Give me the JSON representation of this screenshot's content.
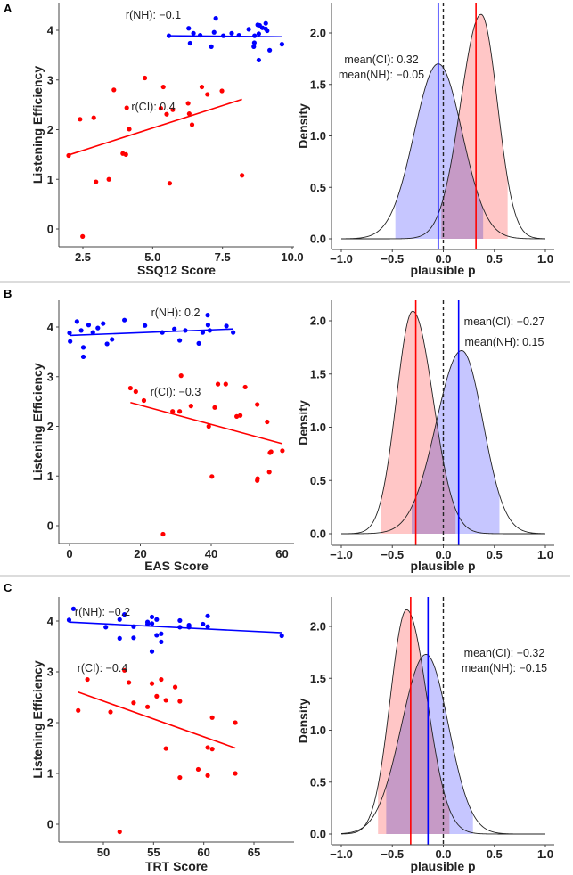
{
  "colors": {
    "ci": "#ff0000",
    "nh": "#0000ff",
    "ci_fill": "#ffb3b3",
    "nh_fill": "#b3b3ff"
  },
  "chart_data": [
    {
      "panel": "A",
      "type": "scatter",
      "xlabel": "SSQ12 Score",
      "ylabel": "Listening Efficiency",
      "xticks": [
        "2.5",
        "5.0",
        "7.5",
        "10.0"
      ],
      "xtick_values": [
        2.5,
        5,
        7.5,
        10
      ],
      "yticks": [
        "0",
        "1",
        "2",
        "3",
        "4"
      ],
      "ytick_values": [
        0,
        1,
        2,
        3,
        4
      ],
      "annotations": {
        "nh": "r(NH):  −0.1",
        "ci": "r(CI):  0.4"
      },
      "series": [
        {
          "name": "NH",
          "color": "nh",
          "fit": [
            [
              5.58,
              3.89
            ],
            [
              9.63,
              3.87
            ]
          ],
          "points": [
            [
              5.58,
              3.89
            ],
            [
              6.29,
              4.04
            ],
            [
              6.34,
              3.74
            ],
            [
              6.46,
              3.94
            ],
            [
              6.7,
              3.9
            ],
            [
              7.1,
              3.67
            ],
            [
              7.2,
              3.96
            ],
            [
              7.26,
              4.24
            ],
            [
              7.53,
              3.89
            ],
            [
              7.83,
              3.94
            ],
            [
              8.09,
              3.9
            ],
            [
              8.44,
              4.02
            ],
            [
              8.62,
              3.67
            ],
            [
              8.64,
              3.75
            ],
            [
              8.65,
              3.89
            ],
            [
              8.76,
              4.11
            ],
            [
              8.8,
              3.93
            ],
            [
              8.8,
              3.4
            ],
            [
              8.83,
              4.1
            ],
            [
              8.93,
              4.05
            ],
            [
              9.05,
              4.14
            ],
            [
              9.05,
              4.03
            ],
            [
              9.1,
              3.99
            ],
            [
              9.19,
              3.6
            ],
            [
              9.63,
              3.72
            ]
          ]
        },
        {
          "name": "CI",
          "color": "ci",
          "fit": [
            [
              1.99,
              1.49
            ],
            [
              8.2,
              2.61
            ]
          ],
          "points": [
            [
              1.99,
              1.48
            ],
            [
              2.4,
              2.21
            ],
            [
              2.49,
              -0.15
            ],
            [
              2.89,
              2.24
            ],
            [
              2.97,
              0.95
            ],
            [
              3.43,
              1.0
            ],
            [
              3.61,
              2.8
            ],
            [
              3.93,
              1.52
            ],
            [
              4.04,
              1.5
            ],
            [
              4.07,
              2.44
            ],
            [
              4.16,
              2.01
            ],
            [
              4.72,
              3.04
            ],
            [
              5.29,
              2.43
            ],
            [
              5.38,
              2.86
            ],
            [
              5.5,
              2.31
            ],
            [
              5.61,
              0.92
            ],
            [
              5.72,
              2.4
            ],
            [
              6.27,
              2.53
            ],
            [
              6.31,
              2.32
            ],
            [
              6.41,
              2.1
            ],
            [
              6.76,
              2.86
            ],
            [
              6.96,
              2.71
            ],
            [
              7.48,
              2.78
            ],
            [
              8.2,
              1.08
            ]
          ]
        }
      ]
    },
    {
      "panel": "A",
      "type": "area",
      "xlabel": "plausible p",
      "ylabel": "Density",
      "xticks": [
        "−1.0",
        "−0.5",
        "0.0",
        "0.5",
        "1.0"
      ],
      "xtick_values": [
        -1,
        -0.5,
        0,
        0.5,
        1
      ],
      "yticks": [
        "0.0",
        "0.5",
        "1.0",
        "1.5",
        "2.0"
      ],
      "ytick_values": [
        0,
        0.5,
        1,
        1.5,
        2
      ],
      "annotations": {
        "ci": "mean(CI):  0.32",
        "nh": "mean(NH):  −0.05"
      },
      "series": [
        {
          "name": "NH",
          "color": "nh",
          "mode": -0.05,
          "peak": 1.7,
          "sd_left": 0.235,
          "sd_right": 0.235,
          "mean": -0.05,
          "interval": [
            -0.47,
            0.39
          ]
        },
        {
          "name": "CI",
          "color": "ci",
          "mode": 0.37,
          "peak": 2.18,
          "sd_left": 0.2,
          "sd_right": 0.16,
          "mean": 0.32,
          "interval": [
            -0.02,
            0.63
          ]
        }
      ]
    },
    {
      "panel": "B",
      "type": "scatter",
      "xlabel": "EAS Score",
      "ylabel": "Listening Efficiency",
      "xticks": [
        "0",
        "20",
        "40",
        "60"
      ],
      "xtick_values": [
        0,
        20,
        40,
        60
      ],
      "yticks": [
        "0",
        "1",
        "2",
        "3",
        "4"
      ],
      "ytick_values": [
        0,
        1,
        2,
        3,
        4
      ],
      "annotations": {
        "nh": "r(NH):  0.2",
        "ci": "r(CI):  −0.3"
      },
      "series": [
        {
          "name": "NH",
          "color": "nh",
          "fit": [
            [
              0,
              3.83
            ],
            [
              46.2,
              3.96
            ]
          ],
          "points": [
            [
              0,
              3.88
            ],
            [
              0.17,
              3.71
            ],
            [
              2.1,
              4.11
            ],
            [
              3.3,
              3.93
            ],
            [
              3.9,
              3.59
            ],
            [
              3.9,
              3.4
            ],
            [
              5.4,
              4.04
            ],
            [
              6.6,
              3.89
            ],
            [
              8,
              3.98
            ],
            [
              9.5,
              4.07
            ],
            [
              10.6,
              3.66
            ],
            [
              12,
              3.75
            ],
            [
              15.5,
              4.14
            ],
            [
              21.3,
              4.03
            ],
            [
              26.2,
              3.89
            ],
            [
              29.6,
              3.96
            ],
            [
              31.1,
              3.73
            ],
            [
              32.7,
              3.93
            ],
            [
              36.5,
              3.67
            ],
            [
              37.6,
              3.89
            ],
            [
              39,
              4.24
            ],
            [
              39.1,
              4.04
            ],
            [
              39.6,
              3.93
            ],
            [
              44.3,
              4.02
            ],
            [
              46.2,
              3.89
            ]
          ]
        },
        {
          "name": "CI",
          "color": "ci",
          "fit": [
            [
              17.2,
              2.48
            ],
            [
              60.1,
              1.65
            ]
          ],
          "points": [
            [
              17.2,
              2.77
            ],
            [
              18.7,
              2.7
            ],
            [
              21,
              2.52
            ],
            [
              26.4,
              -0.17
            ],
            [
              29.1,
              2.3
            ],
            [
              31.1,
              2.3
            ],
            [
              31.5,
              3.02
            ],
            [
              34.3,
              2.41
            ],
            [
              39.3,
              2.0
            ],
            [
              40.2,
              0.99
            ],
            [
              41,
              2.38
            ],
            [
              41.9,
              2.85
            ],
            [
              44.1,
              2.85
            ],
            [
              47.2,
              2.2
            ],
            [
              48.2,
              2.22
            ],
            [
              49.6,
              2.79
            ],
            [
              53,
              2.44
            ],
            [
              53,
              0.91
            ],
            [
              53.1,
              0.95
            ],
            [
              55.8,
              2.09
            ],
            [
              56.4,
              1.08
            ],
            [
              56.6,
              1.47
            ],
            [
              56.9,
              1.49
            ],
            [
              60.1,
              1.51
            ]
          ]
        }
      ]
    },
    {
      "panel": "B",
      "type": "area",
      "xlabel": "plausible p",
      "ylabel": "Density",
      "xticks": [
        "−1.0",
        "−0.5",
        "0.0",
        "0.5",
        "1.0"
      ],
      "xtick_values": [
        -1,
        -0.5,
        0,
        0.5,
        1
      ],
      "yticks": [
        "0.0",
        "0.5",
        "1.0",
        "1.5",
        "2.0"
      ],
      "ytick_values": [
        0,
        0.5,
        1,
        1.5,
        2
      ],
      "annotations": {
        "ci": "mean(CI):  −0.27",
        "nh": "mean(NH):  0.15"
      },
      "series": [
        {
          "name": "CI",
          "color": "ci",
          "mode": -0.3,
          "peak": 2.09,
          "sd_left": 0.16,
          "sd_right": 0.2,
          "mean": -0.27,
          "interval": [
            -0.61,
            0.12
          ]
        },
        {
          "name": "NH",
          "color": "nh",
          "mode": 0.18,
          "peak": 1.72,
          "sd_left": 0.25,
          "sd_right": 0.21,
          "mean": 0.15,
          "interval": [
            -0.31,
            0.55
          ]
        }
      ]
    },
    {
      "panel": "C",
      "type": "scatter",
      "xlabel": "TRT Score",
      "ylabel": "Listening Efficiency",
      "xticks": [
        "50",
        "55",
        "60",
        "65"
      ],
      "xtick_values": [
        50,
        55,
        60,
        65
      ],
      "yticks": [
        "0",
        "1",
        "2",
        "3",
        "4"
      ],
      "ytick_values": [
        0,
        1,
        2,
        3,
        4
      ],
      "annotations": {
        "nh": "r(NH):  −0.2",
        "ci": "r(CI):  −0.4"
      },
      "series": [
        {
          "name": "NH",
          "color": "nh",
          "fit": [
            [
              46.58,
              3.98
            ],
            [
              67.77,
              3.77
            ]
          ],
          "points": [
            [
              46.58,
              4.02
            ],
            [
              47.02,
              4.24
            ],
            [
              50.24,
              3.88
            ],
            [
              51.62,
              4.03
            ],
            [
              51.62,
              3.66
            ],
            [
              52.1,
              4.13
            ],
            [
              53.01,
              3.89
            ],
            [
              53.01,
              3.67
            ],
            [
              54.4,
              3.98
            ],
            [
              54.4,
              3.94
            ],
            [
              54.84,
              4.08
            ],
            [
              54.84,
              3.95
            ],
            [
              54.84,
              3.4
            ],
            [
              55.31,
              4.03
            ],
            [
              55.31,
              3.72
            ],
            [
              55.76,
              3.75
            ],
            [
              55.76,
              3.59
            ],
            [
              57.62,
              4.01
            ],
            [
              57.62,
              3.88
            ],
            [
              58.53,
              3.92
            ],
            [
              58.53,
              3.88
            ],
            [
              59.92,
              3.94
            ],
            [
              60.39,
              4.1
            ],
            [
              60.39,
              3.89
            ],
            [
              67.77,
              3.71
            ]
          ]
        },
        {
          "name": "CI",
          "color": "ci",
          "fit": [
            [
              47.49,
              2.6
            ],
            [
              63.14,
              1.5
            ]
          ],
          "points": [
            [
              47.49,
              2.24
            ],
            [
              48.41,
              2.85
            ],
            [
              50.71,
              2.21
            ],
            [
              51.62,
              -0.15
            ],
            [
              52.1,
              3.03
            ],
            [
              52.54,
              2.79
            ],
            [
              53.01,
              2.39
            ],
            [
              54.4,
              2.31
            ],
            [
              54.84,
              2.77
            ],
            [
              55.31,
              2.52
            ],
            [
              55.76,
              2.85
            ],
            [
              56.23,
              2.44
            ],
            [
              56.23,
              1.49
            ],
            [
              57.15,
              2.7
            ],
            [
              57.62,
              2.42
            ],
            [
              57.62,
              0.92
            ],
            [
              59.45,
              1.08
            ],
            [
              60.39,
              1.51
            ],
            [
              60.39,
              0.96
            ],
            [
              60.84,
              2.1
            ],
            [
              60.84,
              1.48
            ],
            [
              63.14,
              2.0
            ],
            [
              63.14,
              1.0
            ]
          ]
        }
      ]
    },
    {
      "panel": "C",
      "type": "area",
      "xlabel": "plausible p",
      "ylabel": "Density",
      "xticks": [
        "−1.0",
        "−0.5",
        "0.0",
        "0.5",
        "1.0"
      ],
      "xtick_values": [
        -1,
        -0.5,
        0,
        0.5,
        1
      ],
      "yticks": [
        "0.0",
        "0.5",
        "1.0",
        "1.5",
        "2.0"
      ],
      "ytick_values": [
        0,
        0.5,
        1,
        1.5,
        2
      ],
      "annotations": {
        "ci": "mean(CI):  −0.32",
        "nh": "mean(NH):  −0.15"
      },
      "series": [
        {
          "name": "CI",
          "color": "ci",
          "mode": -0.36,
          "peak": 2.16,
          "sd_left": 0.16,
          "sd_right": 0.2,
          "mean": -0.32,
          "interval": [
            -0.64,
            0.06
          ]
        },
        {
          "name": "NH",
          "color": "nh",
          "mode": -0.17,
          "peak": 1.73,
          "sd_left": 0.24,
          "sd_right": 0.22,
          "mean": -0.15,
          "interval": [
            -0.56,
            0.29
          ]
        }
      ]
    }
  ]
}
